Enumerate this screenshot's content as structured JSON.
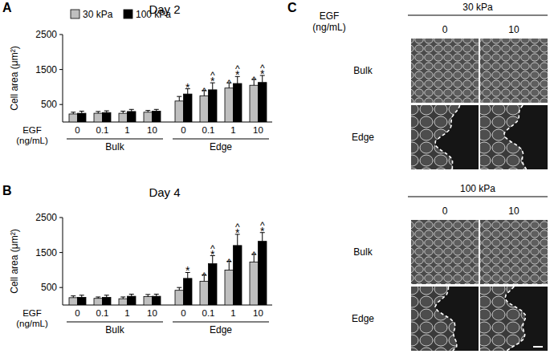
{
  "chart_data": [
    {
      "type": "bar",
      "title": "Day 2",
      "annotations": [
        "A"
      ],
      "categories": [
        "0",
        "0.1",
        "1",
        "10",
        "0",
        "0.1",
        "1",
        "10"
      ],
      "category_groups": [
        "Bulk",
        "Edge"
      ],
      "x_label": "EGF (ng/mL)",
      "y_label": "Cell area (μm²)",
      "ylim": [
        0,
        2500
      ],
      "yticks": [
        500,
        1500,
        2500
      ],
      "legend": "top",
      "series": [
        {
          "name": "30 kPa",
          "color": "#bfbfbf",
          "values": [
            230,
            250,
            250,
            280,
            600,
            750,
            970,
            1050
          ],
          "errors": [
            50,
            50,
            60,
            50,
            130,
            150,
            150,
            170
          ],
          "significance": [
            null,
            null,
            null,
            null,
            null,
            [
              "^"
            ],
            [
              "^"
            ],
            [
              "^"
            ]
          ]
        },
        {
          "name": "100 kPa",
          "color": "#000000",
          "values": [
            250,
            270,
            300,
            310,
            800,
            920,
            1100,
            1130
          ],
          "errors": [
            60,
            50,
            60,
            50,
            150,
            200,
            200,
            200
          ],
          "significance": [
            null,
            null,
            null,
            null,
            [
              "*"
            ],
            [
              "^",
              "*"
            ],
            [
              "^",
              "*"
            ],
            [
              "^",
              "*"
            ]
          ]
        }
      ]
    },
    {
      "type": "bar",
      "title": "Day 4",
      "annotations": [
        "B"
      ],
      "categories": [
        "0",
        "0.1",
        "1",
        "10",
        "0",
        "0.1",
        "1",
        "10"
      ],
      "category_groups": [
        "Bulk",
        "Edge"
      ],
      "x_label": "EGF (ng/mL)",
      "y_label": "Cell area (μm²)",
      "ylim": [
        0,
        2500
      ],
      "yticks": [
        500,
        1500,
        2500
      ],
      "series": [
        {
          "name": "30 kPa",
          "color": "#bfbfbf",
          "values": [
            210,
            190,
            180,
            240,
            420,
            680,
            1000,
            1230
          ],
          "errors": [
            50,
            40,
            50,
            60,
            80,
            180,
            250,
            220
          ],
          "significance": [
            null,
            null,
            null,
            null,
            null,
            [
              "^"
            ],
            [
              "^"
            ],
            [
              "^"
            ]
          ]
        },
        {
          "name": "100 kPa",
          "color": "#000000",
          "values": [
            220,
            220,
            250,
            250,
            760,
            1180,
            1700,
            1820
          ],
          "errors": [
            60,
            60,
            60,
            60,
            170,
            230,
            320,
            250
          ],
          "significance": [
            null,
            null,
            null,
            null,
            [
              "*"
            ],
            [
              "^",
              "*"
            ],
            [
              "^",
              "*"
            ],
            [
              "^",
              "*"
            ]
          ]
        }
      ]
    }
  ],
  "panel_c": {
    "label": "C",
    "egf_label": "EGF (ng/mL)",
    "blocks": [
      {
        "stiffness": "30 kPa",
        "columns": [
          0,
          10
        ],
        "rows": [
          "Bulk",
          "Edge"
        ]
      },
      {
        "stiffness": "100 kPa",
        "columns": [
          0,
          10
        ],
        "rows": [
          "Bulk",
          "Edge"
        ]
      }
    ]
  }
}
